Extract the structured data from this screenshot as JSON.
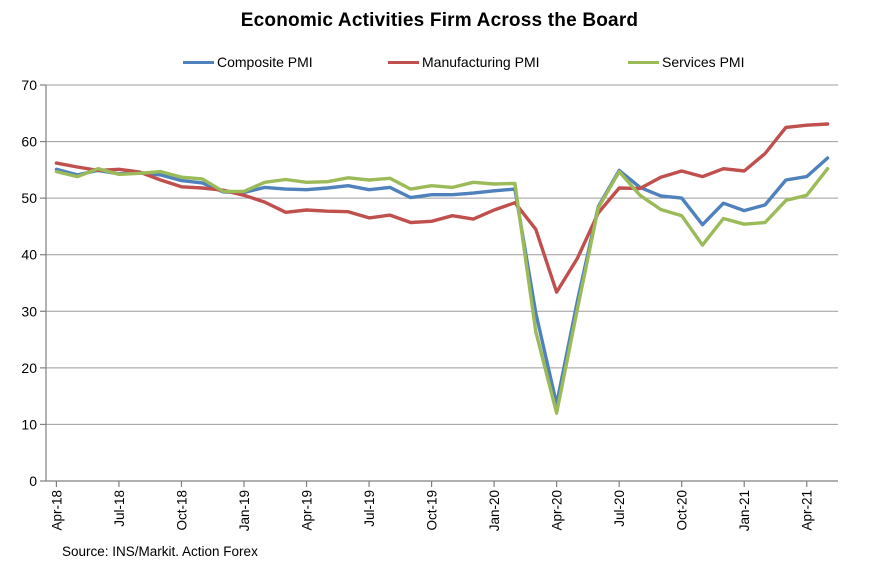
{
  "title": "Economic Activities Firm Across the Board",
  "source": "Source: INS/Markit. Action Forex",
  "legend": [
    {
      "label": "Composite PMI",
      "color": "#4F81BD"
    },
    {
      "label": "Manufacturing PMI",
      "color": "#C0504D"
    },
    {
      "label": "Services PMI",
      "color": "#9BBB59"
    }
  ],
  "colors": {
    "grid": "#9C9C9C",
    "axis": "#808080",
    "text": "#000000"
  },
  "chart_data": {
    "type": "line",
    "title": "Economic Activities Firm Across the Board",
    "xlabel": "",
    "ylabel": "",
    "ylim": [
      0,
      70
    ],
    "y_ticks": [
      0,
      10,
      20,
      30,
      40,
      50,
      60,
      70
    ],
    "grid": "horizontal",
    "legend_position": "top",
    "x_tick_every": 3,
    "x": [
      "Apr-18",
      "May-18",
      "Jun-18",
      "Jul-18",
      "Aug-18",
      "Sep-18",
      "Oct-18",
      "Nov-18",
      "Dec-18",
      "Jan-19",
      "Feb-19",
      "Mar-19",
      "Apr-19",
      "May-19",
      "Jun-19",
      "Jul-19",
      "Aug-19",
      "Sep-19",
      "Oct-19",
      "Nov-19",
      "Dec-19",
      "Jan-20",
      "Feb-20",
      "Mar-20",
      "Apr-20",
      "May-20",
      "Jun-20",
      "Jul-20",
      "Aug-20",
      "Sep-20",
      "Oct-20",
      "Nov-20",
      "Dec-20",
      "Jan-21",
      "Feb-21",
      "Mar-21",
      "Apr-21",
      "May-21"
    ],
    "series": [
      {
        "name": "Composite PMI",
        "color": "#4F81BD",
        "values": [
          55.1,
          54.1,
          54.9,
          54.3,
          54.5,
          54.1,
          53.1,
          52.7,
          51.1,
          51.0,
          51.9,
          51.6,
          51.5,
          51.8,
          52.2,
          51.5,
          51.9,
          50.1,
          50.6,
          50.6,
          50.9,
          51.3,
          51.6,
          29.7,
          13.6,
          31.9,
          48.5,
          54.9,
          51.9,
          50.4,
          50.0,
          45.3,
          49.1,
          47.8,
          48.8,
          53.2,
          53.8,
          57.1
        ]
      },
      {
        "name": "Manufacturing PMI",
        "color": "#C0504D",
        "values": [
          56.2,
          55.5,
          54.9,
          55.1,
          54.6,
          53.2,
          52.0,
          51.8,
          51.4,
          50.5,
          49.3,
          47.5,
          47.9,
          47.7,
          47.6,
          46.5,
          47.0,
          45.7,
          45.9,
          46.9,
          46.3,
          47.9,
          49.2,
          44.5,
          33.4,
          39.4,
          47.4,
          51.8,
          51.7,
          53.7,
          54.8,
          53.8,
          55.2,
          54.8,
          57.9,
          62.5,
          62.9,
          63.1
        ]
      },
      {
        "name": "Services PMI",
        "color": "#9BBB59",
        "values": [
          54.7,
          53.8,
          55.2,
          54.2,
          54.4,
          54.7,
          53.7,
          53.4,
          51.2,
          51.2,
          52.8,
          53.3,
          52.8,
          52.9,
          53.6,
          53.2,
          53.5,
          51.6,
          52.2,
          51.9,
          52.8,
          52.5,
          52.6,
          26.4,
          12.0,
          30.5,
          48.3,
          54.7,
          50.5,
          48.0,
          46.9,
          41.7,
          46.4,
          45.4,
          45.7,
          49.6,
          50.5,
          55.2
        ]
      }
    ]
  }
}
